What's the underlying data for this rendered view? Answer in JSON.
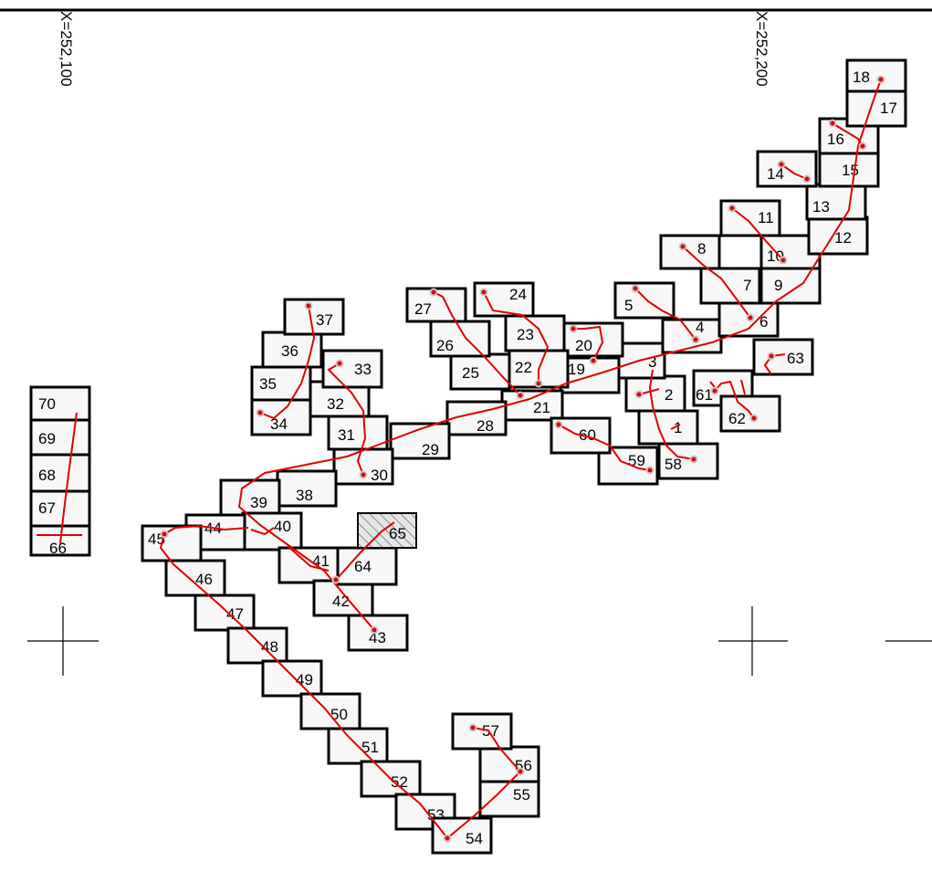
{
  "axis_labels": {
    "left": "X=252,100",
    "right": "X=252,200"
  },
  "frames": [
    {
      "id": "1",
      "label": "1"
    },
    {
      "id": "2",
      "label": "2"
    },
    {
      "id": "3",
      "label": "3"
    },
    {
      "id": "4",
      "label": "4"
    },
    {
      "id": "5",
      "label": "5"
    },
    {
      "id": "6",
      "label": "6"
    },
    {
      "id": "7",
      "label": "7"
    },
    {
      "id": "8",
      "label": "8"
    },
    {
      "id": "9",
      "label": "9"
    },
    {
      "id": "10",
      "label": "10"
    },
    {
      "id": "11",
      "label": "11"
    },
    {
      "id": "12",
      "label": "12"
    },
    {
      "id": "13",
      "label": "13"
    },
    {
      "id": "14",
      "label": "14"
    },
    {
      "id": "15",
      "label": "15"
    },
    {
      "id": "16",
      "label": "16"
    },
    {
      "id": "17",
      "label": "17"
    },
    {
      "id": "18",
      "label": "18"
    },
    {
      "id": "19",
      "label": "19"
    },
    {
      "id": "20",
      "label": "20"
    },
    {
      "id": "21",
      "label": "21"
    },
    {
      "id": "22",
      "label": "22"
    },
    {
      "id": "23",
      "label": "23"
    },
    {
      "id": "24",
      "label": "24"
    },
    {
      "id": "25",
      "label": "25"
    },
    {
      "id": "26",
      "label": "26"
    },
    {
      "id": "27",
      "label": "27"
    },
    {
      "id": "28",
      "label": "28"
    },
    {
      "id": "29",
      "label": "29"
    },
    {
      "id": "30",
      "label": "30"
    },
    {
      "id": "31",
      "label": "31"
    },
    {
      "id": "32",
      "label": "32"
    },
    {
      "id": "33",
      "label": "33"
    },
    {
      "id": "34",
      "label": "34"
    },
    {
      "id": "35",
      "label": "35"
    },
    {
      "id": "36",
      "label": "36"
    },
    {
      "id": "37",
      "label": "37"
    },
    {
      "id": "38",
      "label": "38"
    },
    {
      "id": "39",
      "label": "39"
    },
    {
      "id": "40",
      "label": "40"
    },
    {
      "id": "41",
      "label": "41"
    },
    {
      "id": "42",
      "label": "42"
    },
    {
      "id": "43",
      "label": "43"
    },
    {
      "id": "44",
      "label": "44"
    },
    {
      "id": "45",
      "label": "45"
    },
    {
      "id": "46",
      "label": "46"
    },
    {
      "id": "47",
      "label": "47"
    },
    {
      "id": "48",
      "label": "48"
    },
    {
      "id": "49",
      "label": "49"
    },
    {
      "id": "50",
      "label": "50"
    },
    {
      "id": "51",
      "label": "51"
    },
    {
      "id": "52",
      "label": "52"
    },
    {
      "id": "53",
      "label": "53"
    },
    {
      "id": "54",
      "label": "54"
    },
    {
      "id": "55",
      "label": "55"
    },
    {
      "id": "56",
      "label": "56"
    },
    {
      "id": "57",
      "label": "57"
    },
    {
      "id": "58",
      "label": "58"
    },
    {
      "id": "59",
      "label": "59"
    },
    {
      "id": "60",
      "label": "60"
    },
    {
      "id": "61",
      "label": "61"
    },
    {
      "id": "62",
      "label": "62"
    },
    {
      "id": "63",
      "label": "63"
    },
    {
      "id": "64",
      "label": "64"
    },
    {
      "id": "65",
      "label": "65"
    },
    {
      "id": "66",
      "label": "66"
    },
    {
      "id": "67",
      "label": "67"
    },
    {
      "id": "68",
      "label": "68"
    },
    {
      "id": "69",
      "label": "69"
    },
    {
      "id": "70",
      "label": "70"
    }
  ],
  "colors": {
    "track": "#e00000",
    "frame_border": "#000000",
    "frame_fill": "#f7f7f7"
  }
}
